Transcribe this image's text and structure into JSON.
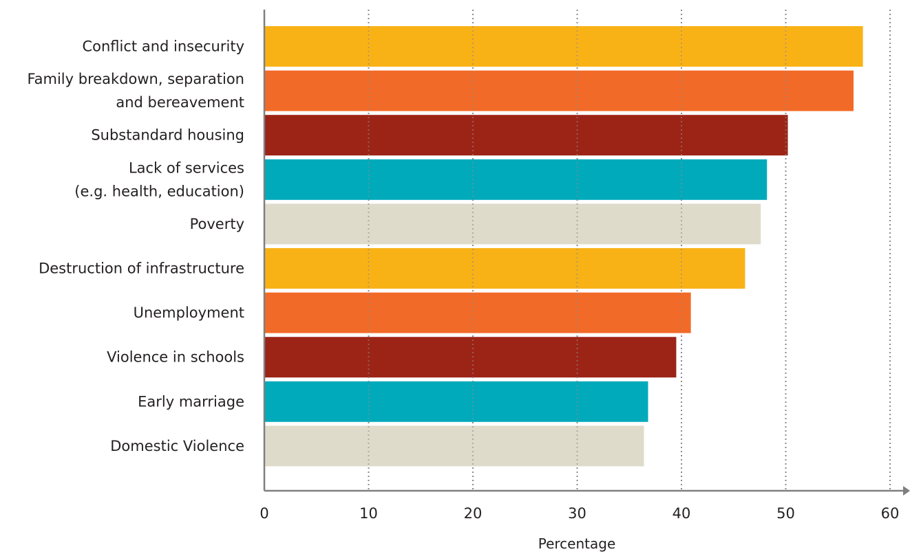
{
  "chart_data": {
    "type": "bar",
    "orientation": "horizontal",
    "categories": [
      [
        "Conflict and insecurity"
      ],
      [
        "Family breakdown, separation",
        "and bereavement"
      ],
      [
        "Substandard housing"
      ],
      [
        "Lack of services",
        "(e.g. health, education)"
      ],
      [
        "Poverty"
      ],
      [
        "Destruction of infrastructure"
      ],
      [
        "Unemployment"
      ],
      [
        "Violence in schools"
      ],
      [
        "Early marriage"
      ],
      [
        "Domestic Violence"
      ]
    ],
    "values": [
      57.4,
      56.5,
      50.2,
      48.2,
      47.6,
      46.1,
      40.9,
      39.5,
      36.8,
      36.4
    ],
    "colors": [
      "#f9b216",
      "#f26a27",
      "#9c2416",
      "#00aabb",
      "#dedbcb",
      "#f9b216",
      "#f26a27",
      "#9c2416",
      "#00aabb",
      "#dedbcb"
    ],
    "xlabel": "Percentage",
    "xlim": [
      0,
      60
    ],
    "xticks": [
      0,
      10,
      20,
      30,
      40,
      50,
      60
    ],
    "grid": true
  }
}
